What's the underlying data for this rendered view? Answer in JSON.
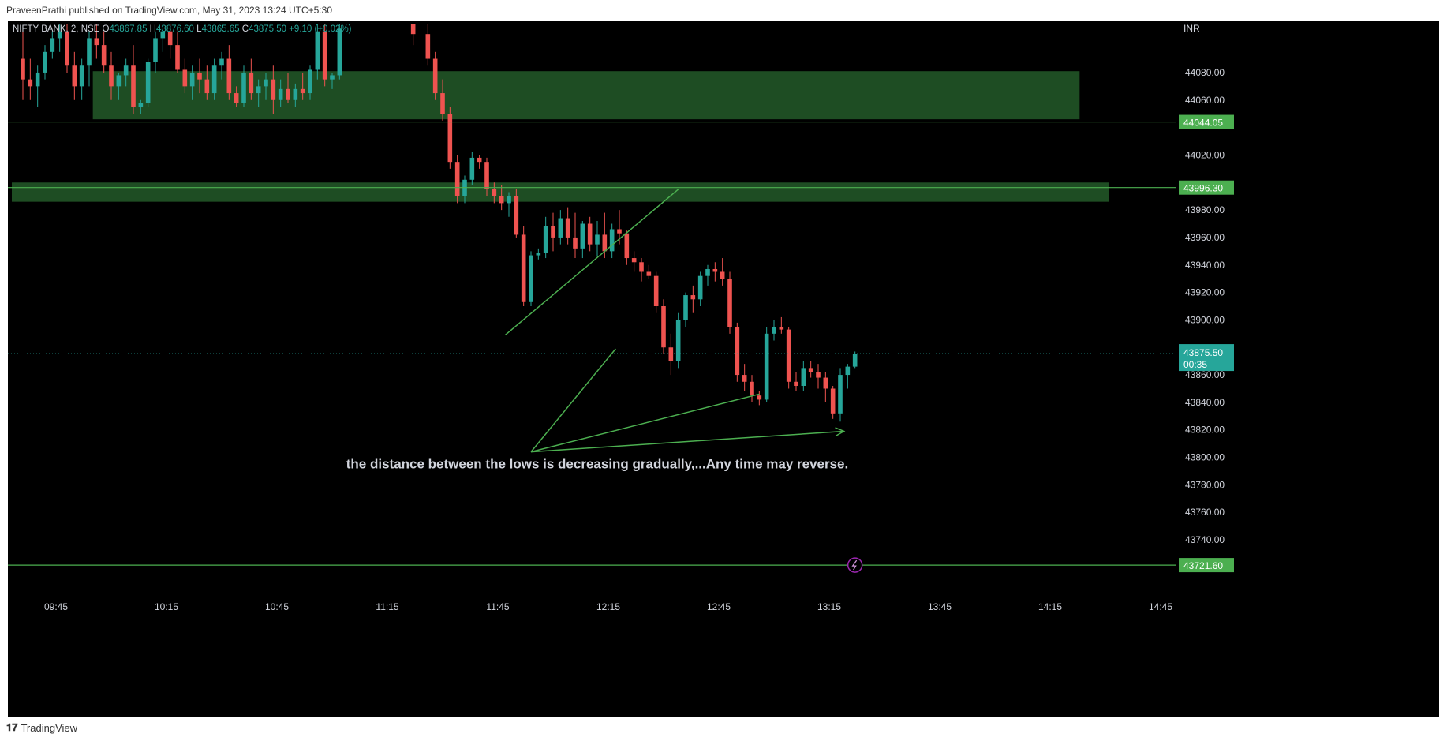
{
  "header": {
    "attribution": "PraveenPrathi published on TradingView.com, May 31, 2023 13:24 UTC+5:30"
  },
  "footer": {
    "brand": "TradingView",
    "logo_icon": "tradingview-logo-icon"
  },
  "colors": {
    "background": "#000000",
    "up": "#26a69a",
    "down": "#ef5350",
    "zone": "#1e4d23",
    "line": "#4caf50",
    "price_tag": "#4caf50",
    "current_tag": "#26a69a"
  },
  "chart_data": {
    "type": "candlestick",
    "symbol_bar": {
      "symbol": "NIFTY BANK, 2, NSE",
      "o_label": "O",
      "o_value": "43867.85",
      "h_label": "H",
      "h_value": "43876.60",
      "l_label": "L",
      "l_value": "43865.65",
      "c_label": "C",
      "c_value": "43875.50",
      "change": "+9.10 (+0.02%)"
    },
    "currency": "INR",
    "y_range": [
      43705,
      44115
    ],
    "y_ticks": [
      44080,
      44060,
      44020,
      43980,
      43960,
      43940,
      43920,
      43900,
      43860,
      43840,
      43820,
      43800,
      43780,
      43760,
      43740
    ],
    "x_ticks": [
      {
        "label": "09:45",
        "min": 585
      },
      {
        "label": "10:15",
        "min": 615
      },
      {
        "label": "10:45",
        "min": 645
      },
      {
        "label": "11:15",
        "min": 675
      },
      {
        "label": "11:45",
        "min": 705
      },
      {
        "label": "12:15",
        "min": 735
      },
      {
        "label": "12:45",
        "min": 765
      },
      {
        "label": "13:15",
        "min": 795
      },
      {
        "label": "13:45",
        "min": 825
      },
      {
        "label": "14:15",
        "min": 855
      },
      {
        "label": "14:45",
        "min": 885
      }
    ],
    "x_range_min": [
      573,
      888
    ],
    "candles": [
      [
        576,
        44090,
        44110,
        44060,
        44075
      ],
      [
        578,
        44075,
        44090,
        44060,
        44070
      ],
      [
        580,
        44070,
        44085,
        44055,
        44080
      ],
      [
        582,
        44080,
        44100,
        44075,
        44095
      ],
      [
        584,
        44095,
        44110,
        44090,
        44105
      ],
      [
        586,
        44105,
        44115,
        44095,
        44110
      ],
      [
        588,
        44110,
        44115,
        44080,
        44085
      ],
      [
        590,
        44085,
        44095,
        44060,
        44070
      ],
      [
        592,
        44070,
        44090,
        44060,
        44085
      ],
      [
        594,
        44085,
        44110,
        44070,
        44105
      ],
      [
        596,
        44105,
        44115,
        44090,
        44100
      ],
      [
        598,
        44100,
        44110,
        44080,
        44085
      ],
      [
        600,
        44085,
        44095,
        44060,
        44070
      ],
      [
        602,
        44070,
        44080,
        44060,
        44078
      ],
      [
        604,
        44078,
        44090,
        44070,
        44085
      ],
      [
        606,
        44085,
        44100,
        44050,
        44055
      ],
      [
        608,
        44055,
        44060,
        44050,
        44058
      ],
      [
        610,
        44058,
        44090,
        44055,
        44088
      ],
      [
        612,
        44088,
        44110,
        44080,
        44105
      ],
      [
        614,
        44105,
        44115,
        44095,
        44110
      ],
      [
        616,
        44110,
        44115,
        44090,
        44100
      ],
      [
        618,
        44100,
        44110,
        44080,
        44082
      ],
      [
        620,
        44082,
        44090,
        44065,
        44070
      ],
      [
        622,
        44070,
        44085,
        44060,
        44080
      ],
      [
        624,
        44080,
        44090,
        44065,
        44075
      ],
      [
        626,
        44075,
        44085,
        44060,
        44065
      ],
      [
        628,
        44065,
        44090,
        44060,
        44085
      ],
      [
        630,
        44085,
        44095,
        44075,
        44090
      ],
      [
        632,
        44090,
        44100,
        44060,
        44065
      ],
      [
        634,
        44065,
        44070,
        44055,
        44058
      ],
      [
        636,
        44058,
        44085,
        44055,
        44080
      ],
      [
        638,
        44080,
        44090,
        44060,
        44065
      ],
      [
        640,
        44065,
        44075,
        44055,
        44070
      ],
      [
        642,
        44070,
        44080,
        44060,
        44075
      ],
      [
        644,
        44075,
        44085,
        44050,
        44060
      ],
      [
        646,
        44060,
        44075,
        44055,
        44068
      ],
      [
        648,
        44068,
        44080,
        44058,
        44060
      ],
      [
        650,
        44060,
        44072,
        44055,
        44068
      ],
      [
        652,
        44068,
        44080,
        44060,
        44065
      ],
      [
        654,
        44065,
        44085,
        44060,
        44082
      ],
      [
        656,
        44082,
        44115,
        44075,
        44110
      ],
      [
        658,
        44110,
        44115,
        44070,
        44075
      ],
      [
        660,
        44075,
        44080,
        44068,
        44078
      ],
      [
        662,
        44078,
        44115,
        44075,
        44112
      ],
      [
        682,
        44115,
        44115,
        44100,
        44108
      ],
      [
        686,
        44108,
        44115,
        44085,
        44090
      ],
      [
        688,
        44090,
        44095,
        44060,
        44065
      ],
      [
        690,
        44065,
        44075,
        44045,
        44050
      ],
      [
        692,
        44050,
        44055,
        44010,
        44015
      ],
      [
        694,
        44015,
        44020,
        43985,
        43990
      ],
      [
        696,
        43990,
        44005,
        43985,
        44002
      ],
      [
        698,
        44002,
        44022,
        43998,
        44018
      ],
      [
        700,
        44018,
        44020,
        44010,
        44015
      ],
      [
        702,
        44015,
        44018,
        43990,
        43995
      ],
      [
        704,
        43995,
        44000,
        43985,
        43990
      ],
      [
        706,
        43990,
        43998,
        43980,
        43985
      ],
      [
        708,
        43985,
        43993,
        43975,
        43990
      ],
      [
        710,
        43990,
        43995,
        43960,
        43962
      ],
      [
        712,
        43962,
        43968,
        43910,
        43913
      ],
      [
        714,
        43913,
        43950,
        43910,
        43947
      ],
      [
        716,
        43947,
        43952,
        43944,
        43949
      ],
      [
        718,
        43949,
        43975,
        43945,
        43968
      ],
      [
        720,
        43968,
        43978,
        43950,
        43960
      ],
      [
        722,
        43960,
        43980,
        43955,
        43974
      ],
      [
        724,
        43974,
        43982,
        43955,
        43960
      ],
      [
        726,
        43960,
        43978,
        43945,
        43952
      ],
      [
        728,
        43952,
        43972,
        43945,
        43970
      ],
      [
        730,
        43970,
        43975,
        43950,
        43955
      ],
      [
        732,
        43955,
        43972,
        43946,
        43962
      ],
      [
        734,
        43962,
        43978,
        43945,
        43950
      ],
      [
        736,
        43950,
        43970,
        43945,
        43966
      ],
      [
        738,
        43966,
        43980,
        43955,
        43963
      ],
      [
        740,
        43963,
        43965,
        43940,
        43945
      ],
      [
        742,
        43945,
        43950,
        43935,
        43942
      ],
      [
        744,
        43942,
        43945,
        43928,
        43935
      ],
      [
        746,
        43935,
        43940,
        43930,
        43932
      ],
      [
        748,
        43932,
        43935,
        43905,
        43910
      ],
      [
        750,
        43910,
        43915,
        43875,
        43880
      ],
      [
        752,
        43880,
        43890,
        43860,
        43870
      ],
      [
        754,
        43870,
        43905,
        43865,
        43900
      ],
      [
        756,
        43900,
        43920,
        43895,
        43918
      ],
      [
        758,
        43918,
        43925,
        43905,
        43915
      ],
      [
        760,
        43915,
        43935,
        43910,
        43932
      ],
      [
        762,
        43932,
        43940,
        43925,
        43937
      ],
      [
        764,
        43937,
        43942,
        43928,
        43935
      ],
      [
        766,
        43935,
        43945,
        43925,
        43930
      ],
      [
        768,
        43930,
        43935,
        43890,
        43895
      ],
      [
        770,
        43895,
        43898,
        43855,
        43860
      ],
      [
        772,
        43860,
        43868,
        43848,
        43855
      ],
      [
        774,
        43855,
        43860,
        43840,
        43845
      ],
      [
        776,
        43845,
        43848,
        43838,
        43842
      ],
      [
        778,
        43842,
        43895,
        43840,
        43890
      ],
      [
        780,
        43890,
        43900,
        43885,
        43895
      ],
      [
        782,
        43895,
        43902,
        43890,
        43893
      ],
      [
        784,
        43893,
        43895,
        43850,
        43855
      ],
      [
        786,
        43855,
        43862,
        43848,
        43852
      ],
      [
        788,
        43852,
        43870,
        43848,
        43865
      ],
      [
        790,
        43865,
        43870,
        43858,
        43862
      ],
      [
        792,
        43862,
        43868,
        43850,
        43858
      ],
      [
        794,
        43858,
        43862,
        43840,
        43850
      ],
      [
        796,
        43850,
        43852,
        43828,
        43832
      ],
      [
        798,
        43832,
        43865,
        43826,
        43860
      ],
      [
        800,
        43860,
        43868,
        43850,
        43866
      ],
      [
        802,
        43866,
        43877,
        43865,
        43875
      ]
    ],
    "zones": [
      {
        "from_min": 595,
        "to_min": 863,
        "low": 44046,
        "high": 44081
      },
      {
        "from_min": 573,
        "to_min": 871,
        "low": 43986,
        "high": 44000
      }
    ],
    "hlines": [
      44044.05,
      43996.3,
      43721.6
    ],
    "price_tags": [
      {
        "label": "44044.05",
        "value": 44044.05,
        "style": "line"
      },
      {
        "label": "43996.30",
        "value": 43996.3,
        "style": "line"
      },
      {
        "label": "43721.60",
        "value": 43721.6,
        "style": "line"
      }
    ],
    "current": {
      "value": 43875.5,
      "label": "43875.50",
      "timer": "00:35"
    },
    "trendline": {
      "from": [
        707,
        43889
      ],
      "to": [
        754,
        43995
      ]
    },
    "annotation_lines": [
      {
        "from": [
          714,
          43804
        ],
        "to": [
          737,
          43879
        ]
      },
      {
        "from": [
          714,
          43804
        ],
        "to": [
          776,
          43846
        ]
      },
      {
        "from": [
          714,
          43804
        ],
        "to": [
          799,
          43819
        ],
        "arrow": true
      }
    ],
    "annotation": "the distance between the lows is decreasing gradually,...Any time may reverse.",
    "annotation_pos": {
      "min": 732,
      "value": 43792
    },
    "flash_icon": "lightning-icon"
  }
}
